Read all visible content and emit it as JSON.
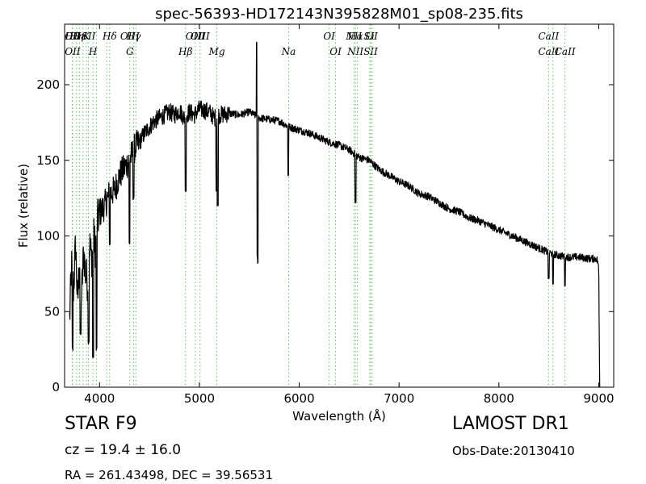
{
  "chart_data": {
    "type": "line",
    "title": "spec-56393-HD172143N395828M01_sp08-235.fits",
    "xlabel": "Wavelength (Å)",
    "ylabel": "Flux (relative)",
    "xlim": [
      3650,
      9150
    ],
    "ylim": [
      0,
      240
    ],
    "x_ticks": [
      4000,
      5000,
      6000,
      7000,
      8000,
      9000
    ],
    "y_ticks": [
      0,
      50,
      100,
      150,
      200
    ],
    "grid": false,
    "series": [
      {
        "color": "#000000",
        "points": [
          [
            3700,
            45
          ],
          [
            3720,
            80
          ],
          [
            3740,
            65
          ],
          [
            3760,
            95
          ],
          [
            3780,
            55
          ],
          [
            3800,
            85
          ],
          [
            3820,
            60
          ],
          [
            3840,
            90
          ],
          [
            3860,
            75
          ],
          [
            3880,
            70
          ],
          [
            3900,
            95
          ],
          [
            3920,
            85
          ],
          [
            3940,
            100
          ],
          [
            3960,
            92
          ],
          [
            3980,
            110
          ],
          [
            4000,
            115
          ],
          [
            4050,
            120
          ],
          [
            4100,
            128
          ],
          [
            4150,
            130
          ],
          [
            4200,
            140
          ],
          [
            4250,
            145
          ],
          [
            4300,
            150
          ],
          [
            4350,
            158
          ],
          [
            4400,
            162
          ],
          [
            4450,
            168
          ],
          [
            4500,
            172
          ],
          [
            4550,
            176
          ],
          [
            4600,
            178
          ],
          [
            4650,
            180
          ],
          [
            4700,
            182
          ],
          [
            4750,
            180
          ],
          [
            4800,
            183
          ],
          [
            4850,
            178
          ],
          [
            4900,
            182
          ],
          [
            4950,
            180
          ],
          [
            5000,
            184
          ],
          [
            5050,
            183
          ],
          [
            5100,
            182
          ],
          [
            5150,
            178
          ],
          [
            5200,
            180
          ],
          [
            5300,
            181
          ],
          [
            5400,
            180
          ],
          [
            5500,
            182
          ],
          [
            5600,
            178
          ],
          [
            5700,
            177
          ],
          [
            5800,
            176
          ],
          [
            5900,
            172
          ],
          [
            6000,
            170
          ],
          [
            6100,
            168
          ],
          [
            6200,
            165
          ],
          [
            6300,
            162
          ],
          [
            6400,
            160
          ],
          [
            6500,
            157
          ],
          [
            6600,
            152
          ],
          [
            6700,
            150
          ],
          [
            6800,
            144
          ],
          [
            6900,
            140
          ],
          [
            7000,
            136
          ],
          [
            7100,
            133
          ],
          [
            7200,
            128
          ],
          [
            7300,
            126
          ],
          [
            7400,
            122
          ],
          [
            7500,
            118
          ],
          [
            7600,
            116
          ],
          [
            7700,
            112
          ],
          [
            7800,
            110
          ],
          [
            7900,
            107
          ],
          [
            8000,
            104
          ],
          [
            8100,
            101
          ],
          [
            8200,
            98
          ],
          [
            8300,
            95
          ],
          [
            8400,
            92
          ],
          [
            8500,
            89
          ],
          [
            8600,
            87
          ],
          [
            8700,
            86
          ],
          [
            8800,
            86
          ],
          [
            8900,
            85
          ],
          [
            8980,
            85
          ],
          [
            9000,
            80
          ],
          [
            9010,
            0
          ]
        ],
        "features": [
          {
            "x": 3730,
            "y": 25
          },
          {
            "x": 3810,
            "y": 35
          },
          {
            "x": 3890,
            "y": 30
          },
          {
            "x": 3935,
            "y": 20
          },
          {
            "x": 3970,
            "y": 25
          },
          {
            "x": 4102,
            "y": 95
          },
          {
            "x": 4300,
            "y": 95
          },
          {
            "x": 4340,
            "y": 125
          },
          {
            "x": 4862,
            "y": 130
          },
          {
            "x": 5170,
            "y": 130
          },
          {
            "x": 5183,
            "y": 120
          },
          {
            "x": 5577,
            "y": 228
          },
          {
            "x": 5582,
            "y": 82
          },
          {
            "x": 5890,
            "y": 140
          },
          {
            "x": 6563,
            "y": 122
          },
          {
            "x": 8498,
            "y": 72
          },
          {
            "x": 8542,
            "y": 68
          },
          {
            "x": 8662,
            "y": 67
          }
        ]
      }
    ],
    "line_markers": [
      {
        "x": 3727,
        "top": "Hθ",
        "bottom": ""
      },
      {
        "x": 3730,
        "top": "OII",
        "bottom": "OII"
      },
      {
        "x": 3770,
        "top": "Hη",
        "bottom": ""
      },
      {
        "x": 3798,
        "top": "Hε",
        "bottom": ""
      },
      {
        "x": 3835,
        "top": "",
        "bottom": ""
      },
      {
        "x": 3869,
        "top": "K",
        "bottom": ""
      },
      {
        "x": 3889,
        "top": "SII",
        "bottom": ""
      },
      {
        "x": 3934,
        "top": "",
        "bottom": "H"
      },
      {
        "x": 3969,
        "top": "",
        "bottom": ""
      },
      {
        "x": 4072,
        "top": "",
        "bottom": ""
      },
      {
        "x": 4102,
        "top": "Hδ",
        "bottom": ""
      },
      {
        "x": 4304,
        "top": "OIII",
        "bottom": "G"
      },
      {
        "x": 4341,
        "top": "Hγ",
        "bottom": ""
      },
      {
        "x": 4363,
        "top": "",
        "bottom": ""
      },
      {
        "x": 4861,
        "top": "",
        "bottom": "Hβ"
      },
      {
        "x": 4959,
        "top": "OIII",
        "bottom": ""
      },
      {
        "x": 5007,
        "top": "OIII",
        "bottom": ""
      },
      {
        "x": 5175,
        "top": "",
        "bottom": "Mg"
      },
      {
        "x": 5894,
        "top": "",
        "bottom": "Na"
      },
      {
        "x": 6300,
        "top": "OI",
        "bottom": ""
      },
      {
        "x": 6364,
        "top": "",
        "bottom": "OI"
      },
      {
        "x": 6548,
        "top": "NII",
        "bottom": ""
      },
      {
        "x": 6563,
        "top": "Hα",
        "bottom": "NII"
      },
      {
        "x": 6583,
        "top": "",
        "bottom": ""
      },
      {
        "x": 6707,
        "top": "Li",
        "bottom": ""
      },
      {
        "x": 6716,
        "top": "SII",
        "bottom": "SII"
      },
      {
        "x": 6731,
        "top": "",
        "bottom": ""
      },
      {
        "x": 8498,
        "top": "CaII",
        "bottom": "CaII"
      },
      {
        "x": 8542,
        "top": "",
        "bottom": ""
      },
      {
        "x": 8662,
        "top": "",
        "bottom": "CaII"
      }
    ],
    "marker_color": "#6abf69"
  },
  "info": {
    "class_line": "STAR   F9",
    "cz_line": "cz = 19.4  ± 16.0",
    "radec_line": "RA = 261.43498, DEC = 39.56531",
    "survey": "LAMOST DR1",
    "obs_date": "Obs-Date:20130410"
  }
}
